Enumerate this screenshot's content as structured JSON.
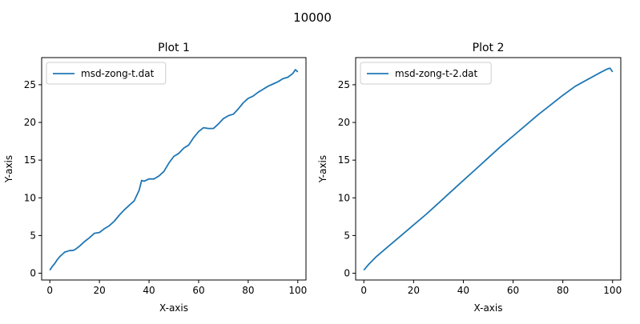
{
  "figure": {
    "suptitle": "10000"
  },
  "chart_data": [
    {
      "type": "line",
      "title": "Plot 1",
      "xlabel": "X-axis",
      "ylabel": "Y-axis",
      "xlim": [
        -3.3,
        103.3
      ],
      "ylim": [
        -0.9,
        28.6
      ],
      "xticks": [
        0,
        20,
        40,
        60,
        80,
        100
      ],
      "yticks": [
        0,
        5,
        10,
        15,
        20,
        25
      ],
      "grid": false,
      "legend": "top-left",
      "color": "#1f77b4",
      "series": [
        {
          "name": "msd-zong-t.dat",
          "x": [
            0,
            1,
            2,
            3,
            4,
            5,
            6,
            7,
            8,
            9,
            10,
            12,
            14,
            16,
            18,
            20,
            22,
            24,
            26,
            28,
            30,
            32,
            34,
            36,
            37,
            38,
            40,
            42,
            44,
            46,
            48,
            50,
            52,
            54,
            56,
            58,
            60,
            62,
            64,
            66,
            68,
            70,
            72,
            74,
            76,
            78,
            80,
            82,
            84,
            86,
            88,
            90,
            92,
            94,
            96,
            98,
            99,
            100
          ],
          "y": [
            0.4,
            0.9,
            1.3,
            1.8,
            2.2,
            2.5,
            2.8,
            2.9,
            3.0,
            3.0,
            3.1,
            3.6,
            4.2,
            4.7,
            5.3,
            5.4,
            5.9,
            6.3,
            6.9,
            7.7,
            8.4,
            9.0,
            9.6,
            11.0,
            12.3,
            12.2,
            12.5,
            12.5,
            12.9,
            13.5,
            14.6,
            15.5,
            15.9,
            16.6,
            17.0,
            18.0,
            18.8,
            19.3,
            19.2,
            19.2,
            19.8,
            20.5,
            20.9,
            21.1,
            21.8,
            22.6,
            23.2,
            23.5,
            24.0,
            24.4,
            24.8,
            25.1,
            25.4,
            25.8,
            26.0,
            26.5,
            27.0,
            26.7
          ]
        }
      ]
    },
    {
      "type": "line",
      "title": "Plot 2",
      "xlabel": "X-axis",
      "ylabel": "Y-axis",
      "xlim": [
        -3.3,
        103.3
      ],
      "ylim": [
        -0.9,
        28.6
      ],
      "xticks": [
        0,
        20,
        40,
        60,
        80,
        100
      ],
      "yticks": [
        0,
        5,
        10,
        15,
        20,
        25
      ],
      "grid": false,
      "legend": "top-left",
      "color": "#1f77b4",
      "series": [
        {
          "name": "msd-zong-t-2.dat",
          "x": [
            0,
            2,
            5,
            10,
            15,
            20,
            25,
            30,
            35,
            40,
            45,
            50,
            55,
            60,
            65,
            70,
            75,
            80,
            85,
            90,
            95,
            98,
            99,
            100
          ],
          "y": [
            0.4,
            1.2,
            2.2,
            3.6,
            5.0,
            6.4,
            7.8,
            9.3,
            10.8,
            12.3,
            13.8,
            15.3,
            16.8,
            18.2,
            19.6,
            21.0,
            22.3,
            23.6,
            24.8,
            25.7,
            26.6,
            27.1,
            27.2,
            26.7
          ]
        }
      ]
    }
  ]
}
